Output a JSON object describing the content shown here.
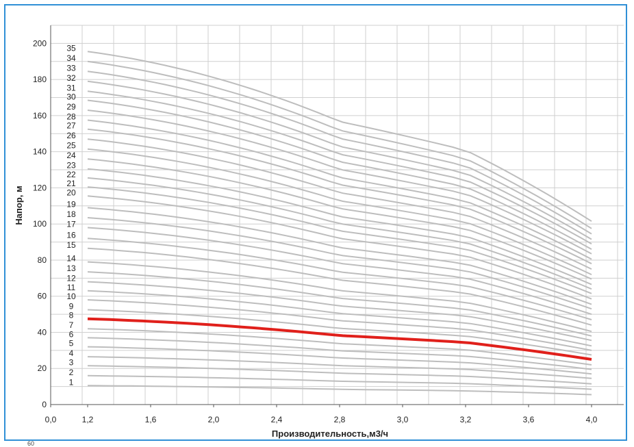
{
  "chart_data": {
    "type": "line",
    "title": "",
    "xlabel": "Производительность,м3/ч",
    "ylabel": "Напор, м",
    "xlim": [
      0.0,
      4.0
    ],
    "ylim": [
      0,
      210
    ],
    "x_ticks": [
      "0,0",
      "1,2",
      "1,6",
      "2,0",
      "2,4",
      "2,8",
      "3,0",
      "3,2",
      "3,6",
      "4,0"
    ],
    "x_tick_values": [
      0.0,
      1.2,
      1.6,
      2.0,
      2.4,
      2.8,
      3.0,
      3.2,
      3.6,
      4.0
    ],
    "y_ticks": [
      "0",
      "20",
      "40",
      "60",
      "80",
      "100",
      "120",
      "140",
      "160",
      "180",
      "200"
    ],
    "y_tick_values": [
      0,
      20,
      40,
      60,
      80,
      100,
      120,
      140,
      160,
      180,
      200
    ],
    "grid": true,
    "highlight_color": "#e0201b",
    "curve_color": "#bdbdbd",
    "series": [
      {
        "name": "1",
        "x": [
          1.2,
          4.0
        ],
        "y": [
          10.5,
          5.5
        ]
      },
      {
        "name": "2",
        "x": [
          1.2,
          4.0
        ],
        "y": [
          16.0,
          8.5
        ]
      },
      {
        "name": "3",
        "x": [
          1.2,
          4.0
        ],
        "y": [
          21.5,
          11.5
        ]
      },
      {
        "name": "4",
        "x": [
          1.2,
          4.0
        ],
        "y": [
          26.5,
          14.5
        ]
      },
      {
        "name": "5",
        "x": [
          1.2,
          4.0
        ],
        "y": [
          32.0,
          17.0
        ]
      },
      {
        "name": "6",
        "x": [
          1.2,
          4.0
        ],
        "y": [
          37.0,
          19.5
        ]
      },
      {
        "name": "7",
        "x": [
          1.2,
          4.0
        ],
        "y": [
          42.0,
          22.0
        ]
      },
      {
        "name": "8",
        "x": [
          1.2,
          4.0
        ],
        "y": [
          47.5,
          25.0
        ],
        "highlight": true
      },
      {
        "name": "9",
        "x": [
          1.2,
          4.0
        ],
        "y": [
          52.5,
          27.5
        ]
      },
      {
        "name": "10",
        "x": [
          1.2,
          4.0
        ],
        "y": [
          58.0,
          30.0
        ]
      },
      {
        "name": "11",
        "x": [
          1.2,
          4.0
        ],
        "y": [
          63.0,
          32.5
        ]
      },
      {
        "name": "12",
        "x": [
          1.2,
          4.0
        ],
        "y": [
          68.0,
          35.5
        ]
      },
      {
        "name": "13",
        "x": [
          1.2,
          4.0
        ],
        "y": [
          73.5,
          38.0
        ]
      },
      {
        "name": "14",
        "x": [
          1.2,
          4.0
        ],
        "y": [
          79.0,
          40.5
        ]
      },
      {
        "name": "15",
        "x": [
          1.2,
          4.0
        ],
        "y": [
          86.5,
          44.0
        ]
      },
      {
        "name": "16",
        "x": [
          1.2,
          4.0
        ],
        "y": [
          92.0,
          47.0
        ]
      },
      {
        "name": "17",
        "x": [
          1.2,
          4.0
        ],
        "y": [
          98.0,
          50.0
        ]
      },
      {
        "name": "18",
        "x": [
          1.2,
          4.0
        ],
        "y": [
          103.5,
          53.0
        ]
      },
      {
        "name": "19",
        "x": [
          1.2,
          4.0
        ],
        "y": [
          109.0,
          55.5
        ]
      },
      {
        "name": "20",
        "x": [
          1.2,
          4.0
        ],
        "y": [
          115.5,
          58.5
        ]
      },
      {
        "name": "21",
        "x": [
          1.2,
          4.0
        ],
        "y": [
          120.5,
          61.5
        ]
      },
      {
        "name": "22",
        "x": [
          1.2,
          4.0
        ],
        "y": [
          125.5,
          64.0
        ]
      },
      {
        "name": "23",
        "x": [
          1.2,
          4.0
        ],
        "y": [
          130.5,
          66.5
        ]
      },
      {
        "name": "24",
        "x": [
          1.2,
          4.0
        ],
        "y": [
          136.0,
          69.5
        ]
      },
      {
        "name": "25",
        "x": [
          1.2,
          4.0
        ],
        "y": [
          141.5,
          72.0
        ]
      },
      {
        "name": "26",
        "x": [
          1.2,
          4.0
        ],
        "y": [
          147.0,
          75.0
        ]
      },
      {
        "name": "27",
        "x": [
          1.2,
          4.0
        ],
        "y": [
          152.5,
          78.0
        ]
      },
      {
        "name": "28",
        "x": [
          1.2,
          4.0
        ],
        "y": [
          157.5,
          80.5
        ]
      },
      {
        "name": "29",
        "x": [
          1.2,
          4.0
        ],
        "y": [
          163.0,
          83.5
        ]
      },
      {
        "name": "30",
        "x": [
          1.2,
          4.0
        ],
        "y": [
          168.5,
          86.0
        ]
      },
      {
        "name": "31",
        "x": [
          1.2,
          4.0
        ],
        "y": [
          173.5,
          89.0
        ]
      },
      {
        "name": "32",
        "x": [
          1.2,
          4.0
        ],
        "y": [
          179.0,
          91.5
        ]
      },
      {
        "name": "33",
        "x": [
          1.2,
          4.0
        ],
        "y": [
          184.5,
          94.5
        ]
      },
      {
        "name": "34",
        "x": [
          1.2,
          4.0
        ],
        "y": [
          190.0,
          97.5
        ]
      },
      {
        "name": "35",
        "x": [
          1.2,
          4.0
        ],
        "y": [
          195.5,
          101.5
        ]
      }
    ]
  },
  "footer": {
    "note": "60"
  }
}
